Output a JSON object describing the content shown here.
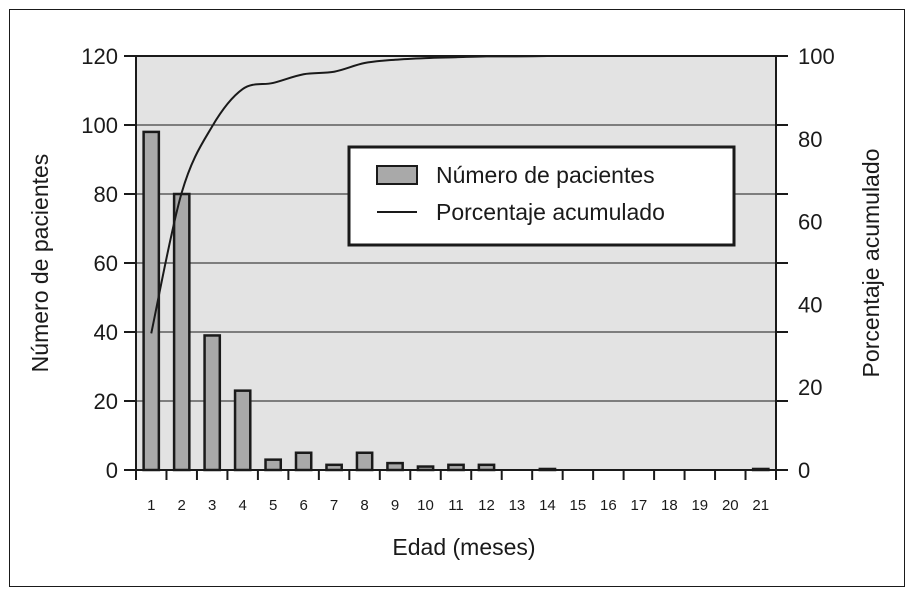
{
  "chart_data": {
    "type": "bar",
    "categories": [
      "1",
      "2",
      "3",
      "4",
      "5",
      "6",
      "7",
      "8",
      "9",
      "10",
      "11",
      "12",
      "13",
      "14",
      "15",
      "16",
      "17",
      "18",
      "19",
      "20",
      "21"
    ],
    "series": [
      {
        "name": "Número de pacientes",
        "type": "bar",
        "axis": "left",
        "values": [
          98,
          80,
          39,
          23,
          3,
          5,
          1.5,
          5,
          2,
          1,
          1.5,
          1.5,
          0,
          0.3,
          0,
          0,
          0,
          0,
          0,
          0,
          0.3
        ]
      },
      {
        "name": "Porcentaje acumulado",
        "type": "line",
        "axis": "right",
        "values": [
          33,
          67,
          83,
          92,
          93.5,
          95.6,
          96.2,
          98.3,
          99.1,
          99.5,
          99.7,
          99.9,
          99.9,
          100,
          100,
          100,
          100,
          100,
          100,
          100,
          100
        ]
      }
    ],
    "xlabel": "Edad (meses)",
    "ylabel": "Número de pacientes",
    "y2label": "Porcentaje acumulado",
    "ylim": [
      0,
      120
    ],
    "y2lim": [
      0,
      100
    ],
    "yticks": [
      0,
      20,
      40,
      60,
      80,
      100,
      120
    ],
    "y2ticks": [
      0,
      20,
      40,
      60,
      80,
      100
    ],
    "grid": true,
    "legend": "inside-top-right",
    "colors": {
      "bar_fill": "#a9a9a9",
      "plot_background": "#e3e3e3",
      "line": "#1a1a1a"
    }
  }
}
